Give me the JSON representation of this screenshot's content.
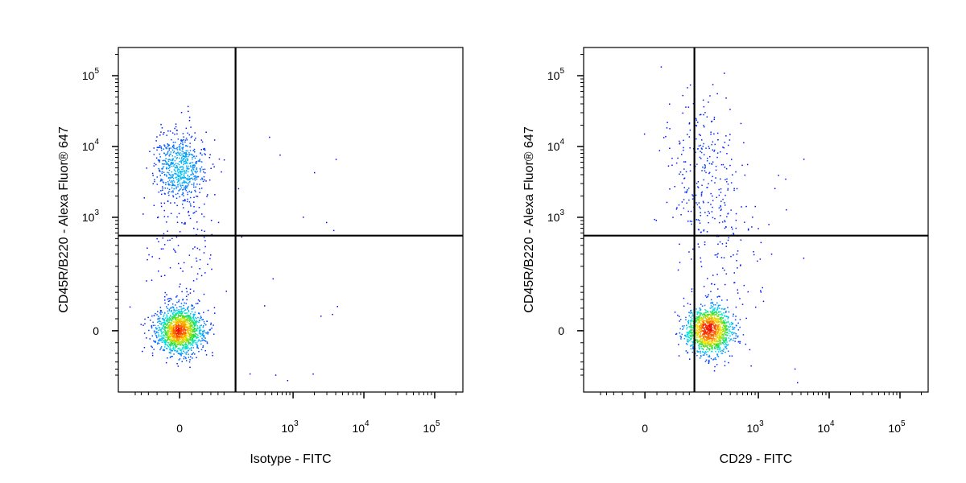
{
  "chart_data": [
    {
      "type": "scatter",
      "xlabel": "Isotype - FITC",
      "ylabel": "CD45R/B220 - Alexa Fluor® 647",
      "x_ticks": [
        {
          "value": 0,
          "base": "0",
          "exp": ""
        },
        {
          "value": 1000,
          "base": "10",
          "exp": "3"
        },
        {
          "value": 10000,
          "base": "10",
          "exp": "4"
        },
        {
          "value": 100000,
          "base": "10",
          "exp": "5"
        }
      ],
      "y_ticks": [
        {
          "value": 0,
          "base": "0",
          "exp": ""
        },
        {
          "value": 1000,
          "base": "10",
          "exp": "3"
        },
        {
          "value": 10000,
          "base": "10",
          "exp": "4"
        },
        {
          "value": 100000,
          "base": "10",
          "exp": "5"
        }
      ],
      "quadrant_gate": {
        "x": 150,
        "y": 550
      },
      "populations": [
        {
          "x_center": 0,
          "y_center": 0,
          "count": 1450,
          "density": "high"
        },
        {
          "x_center": 0,
          "y_center": 5000,
          "count": 650,
          "density": "medium"
        },
        {
          "x_center": 0,
          "y_center": 250,
          "count": 120,
          "density": "low"
        }
      ]
    },
    {
      "type": "scatter",
      "xlabel": "CD29 - FITC",
      "ylabel": "CD45R/B220 - Alexa Fluor® 647",
      "x_ticks": [
        {
          "value": 0,
          "base": "0",
          "exp": ""
        },
        {
          "value": 1000,
          "base": "10",
          "exp": "3"
        },
        {
          "value": 10000,
          "base": "10",
          "exp": "4"
        },
        {
          "value": 100000,
          "base": "10",
          "exp": "5"
        }
      ],
      "y_ticks": [
        {
          "value": 0,
          "base": "0",
          "exp": ""
        },
        {
          "value": 1000,
          "base": "10",
          "exp": "3"
        },
        {
          "value": 10000,
          "base": "10",
          "exp": "4"
        },
        {
          "value": 100000,
          "base": "10",
          "exp": "5"
        }
      ],
      "quadrant_gate": {
        "x": 120,
        "y": 550
      },
      "populations": [
        {
          "x_center": 200,
          "y_center": 0,
          "count": 1250,
          "density": "high"
        },
        {
          "x_center": 150,
          "y_center": 4000,
          "count": 260,
          "density": "low"
        },
        {
          "x_center": 300,
          "y_center": 300,
          "count": 120,
          "density": "low"
        }
      ]
    }
  ]
}
